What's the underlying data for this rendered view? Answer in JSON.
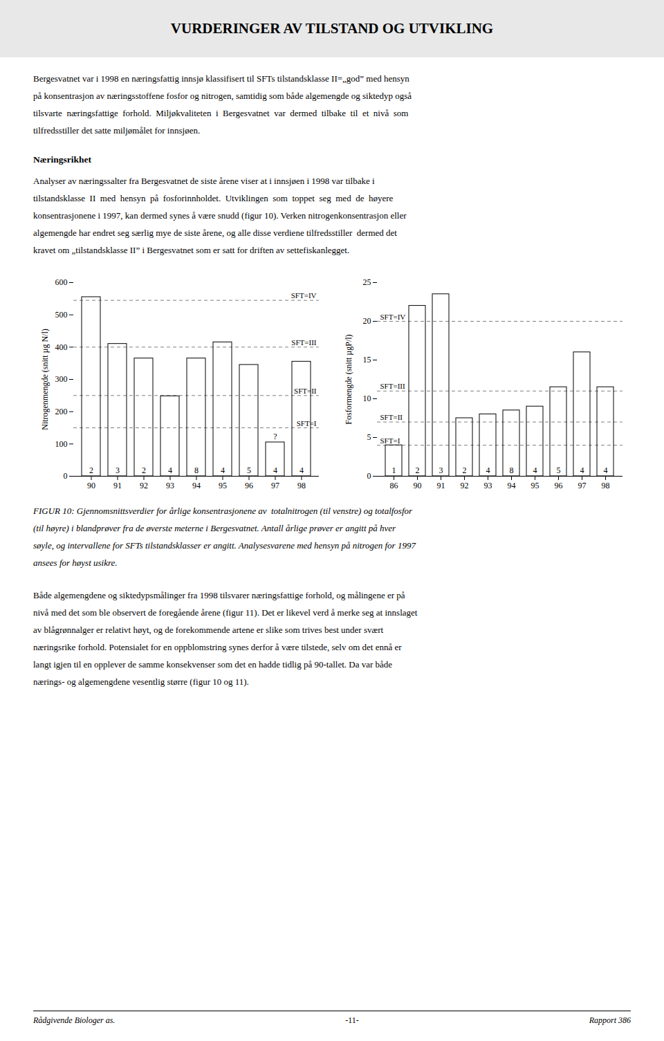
{
  "title": "VURDERINGER AV TILSTAND OG UTVIKLING",
  "paragraph_1": [
    "Bergesvatnet var i 1998 en næringsfattig innsjø klassifisert til SFTs tilstandsklasse II=„god” med hensyn",
    "på konsentrasjon av næringsstoffene fosfor og nitrogen, samtidig som både algemengde og siktedyp også",
    "tilsvarte  næringsfattige  forhold.  Miljøkvaliteten  i  Bergesvatnet  var  dermed  tilbake  til  et  nivå  som",
    "tilfredsstiller det satte miljømålet for innsjøen."
  ],
  "heading": "Næringsrikhet",
  "paragraph_2": [
    "Analyser av næringssalter fra Bergesvatnet de siste årene viser at i innsjøen i 1998 var tilbake i",
    "tilstandsklasse  II  med  hensyn  på  fosforinnholdet.  Utviklingen  som  toppet  seg  med  de  høyere",
    "konsentrasjonene i 1997, kan dermed synes å være snudd (figur 10). Verken nitrogenkonsentrasjon eller",
    "algemengde har endret seg særlig mye de siste årene, og alle disse verdiene tilfredsstiller  dermed det",
    "kravet om „tilstandsklasse II” i Bergesvatnet som er satt for driften av settefiskanlegget."
  ],
  "caption": [
    "FIGUR 10: Gjennomsnittsverdier for årlige konsentrasjonene av  totalnitrogen (til venstre) og totalfosfor",
    "(til høyre) i blandprøver fra de øverste meterne i Bergesvatnet. Antall årlige prøver er angitt på hver",
    "søyle, og intervallene for SFTs tilstandsklasser er angitt. Analysesvarene med hensyn på nitrogen for 1997",
    "ansees for høyst usikre."
  ],
  "paragraph_3": [
    "Både algemengdene og siktedypsmålinger fra 1998 tilsvarer næringsfattige forhold, og målingene er på",
    "nivå med det som ble observert de foregående årene (figur 11). Det er likevel verd å merke seg at innslaget",
    "av blågrønnalger er relativt høyt, og de forekommende artene er slike som trives best under svært",
    "næringsrike forhold. Potensialet for en oppblomstring synes derfor å være tilstede, selv om det ennå er",
    "langt igjen til en opplever de samme konsekvenser som det en hadde tidlig på 90-tallet. Da var både",
    "nærings- og algemengdene vesentlig større (figur 10 og 11)."
  ],
  "footer": [
    "Rådgivende Biologer as.",
    "-11-",
    "Rapport 386"
  ],
  "chart_data": [
    {
      "type": "bar",
      "ylabel": "Nitrogenmengde (snitt µg N/l)",
      "categories": [
        "90",
        "91",
        "92",
        "93",
        "94",
        "95",
        "96",
        "97",
        "98"
      ],
      "values": [
        555,
        410,
        365,
        248,
        365,
        415,
        345,
        105,
        355
      ],
      "counts": [
        "2",
        "3",
        "2",
        "4",
        "8",
        "4",
        "5",
        "4",
        "4"
      ],
      "ylim": [
        0,
        600
      ],
      "yticks": [
        0,
        100,
        200,
        300,
        400,
        500,
        600
      ],
      "reference_lines": [
        {
          "y": 545,
          "label": "SFT=IV"
        },
        {
          "y": 400,
          "label": "SFT=III"
        },
        {
          "y": 250,
          "label": "SFT=II"
        },
        {
          "y": 150,
          "label": "SFT=I"
        }
      ],
      "annotations": [
        {
          "category": "97",
          "text": "?"
        }
      ],
      "color": "white",
      "grid": false
    },
    {
      "type": "bar",
      "ylabel": "Fosformengde (snitt µgP/l)",
      "categories": [
        "86",
        "90",
        "91",
        "92",
        "93",
        "94",
        "95",
        "96",
        "97",
        "98"
      ],
      "values": [
        4.0,
        22.0,
        23.5,
        7.5,
        8.0,
        8.5,
        9.0,
        11.5,
        16.0,
        11.5
      ],
      "counts": [
        "1",
        "2",
        "3",
        "2",
        "4",
        "8",
        "4",
        "5",
        "4",
        "4"
      ],
      "ylim": [
        0,
        25
      ],
      "yticks": [
        0,
        5,
        10,
        15,
        20,
        25
      ],
      "reference_lines": [
        {
          "y": 20,
          "label": "SFT=IV"
        },
        {
          "y": 11,
          "label": "SFT=III"
        },
        {
          "y": 7,
          "label": "SFT=II"
        },
        {
          "y": 4,
          "label": "SFT=I"
        }
      ],
      "color": "white",
      "grid": false
    }
  ]
}
